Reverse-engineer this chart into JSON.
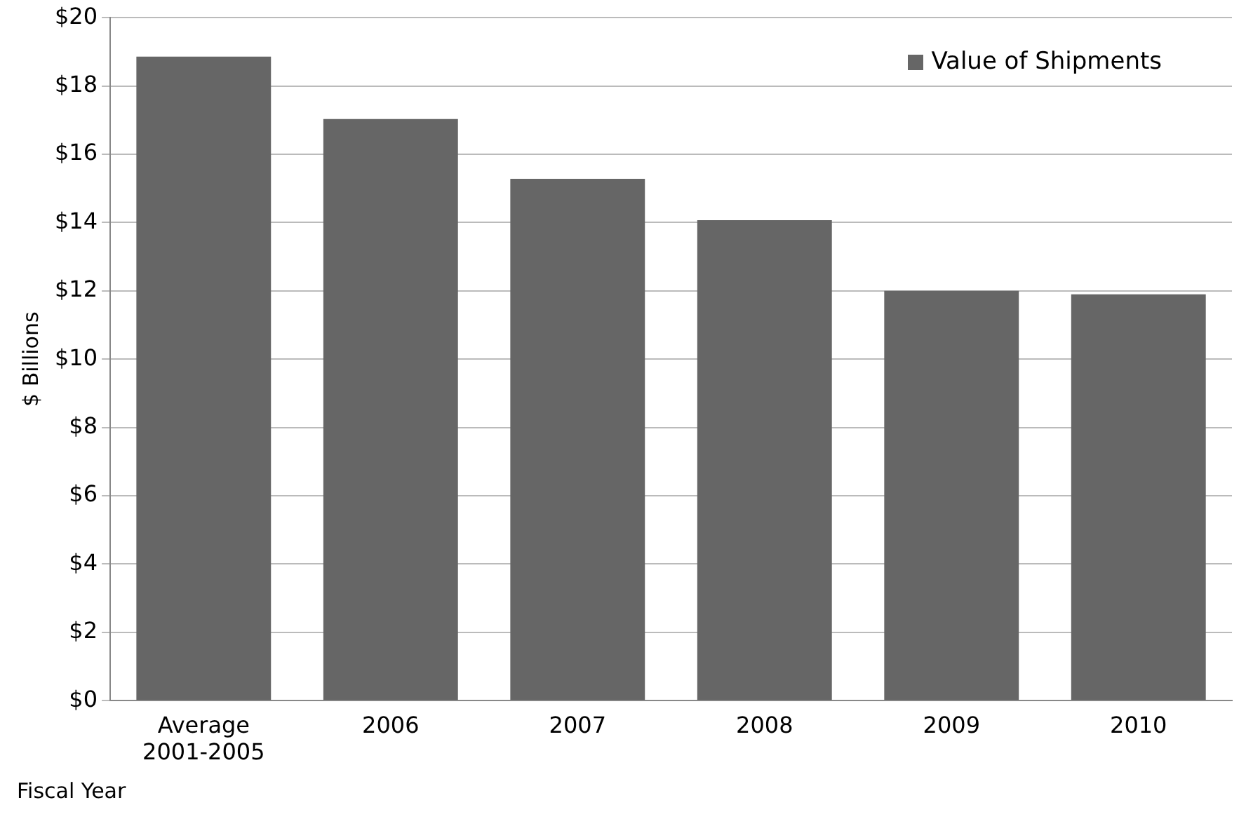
{
  "chart_data": {
    "type": "bar",
    "categories": [
      "Average\n2001-2005",
      "2006",
      "2007",
      "2008",
      "2009",
      "2010"
    ],
    "series": [
      {
        "name": "Value of Shipments",
        "color": "#666666",
        "values": [
          18.86,
          17.03,
          15.28,
          14.07,
          12.0,
          11.9
        ]
      }
    ],
    "ylabel": "$ Billions",
    "xlabel": "Fiscal Year",
    "ylim": [
      0,
      20
    ],
    "yticks": [
      {
        "value": 0,
        "label": "$0"
      },
      {
        "value": 2,
        "label": "$2"
      },
      {
        "value": 4,
        "label": "$4"
      },
      {
        "value": 6,
        "label": "$6"
      },
      {
        "value": 8,
        "label": "$8"
      },
      {
        "value": 10,
        "label": "$10"
      },
      {
        "value": 12,
        "label": "$12"
      },
      {
        "value": 14,
        "label": "$14"
      },
      {
        "value": 16,
        "label": "$16"
      },
      {
        "value": 18,
        "label": "$18"
      },
      {
        "value": 20,
        "label": "$20"
      }
    ],
    "grid": "y",
    "legend": "top right"
  }
}
